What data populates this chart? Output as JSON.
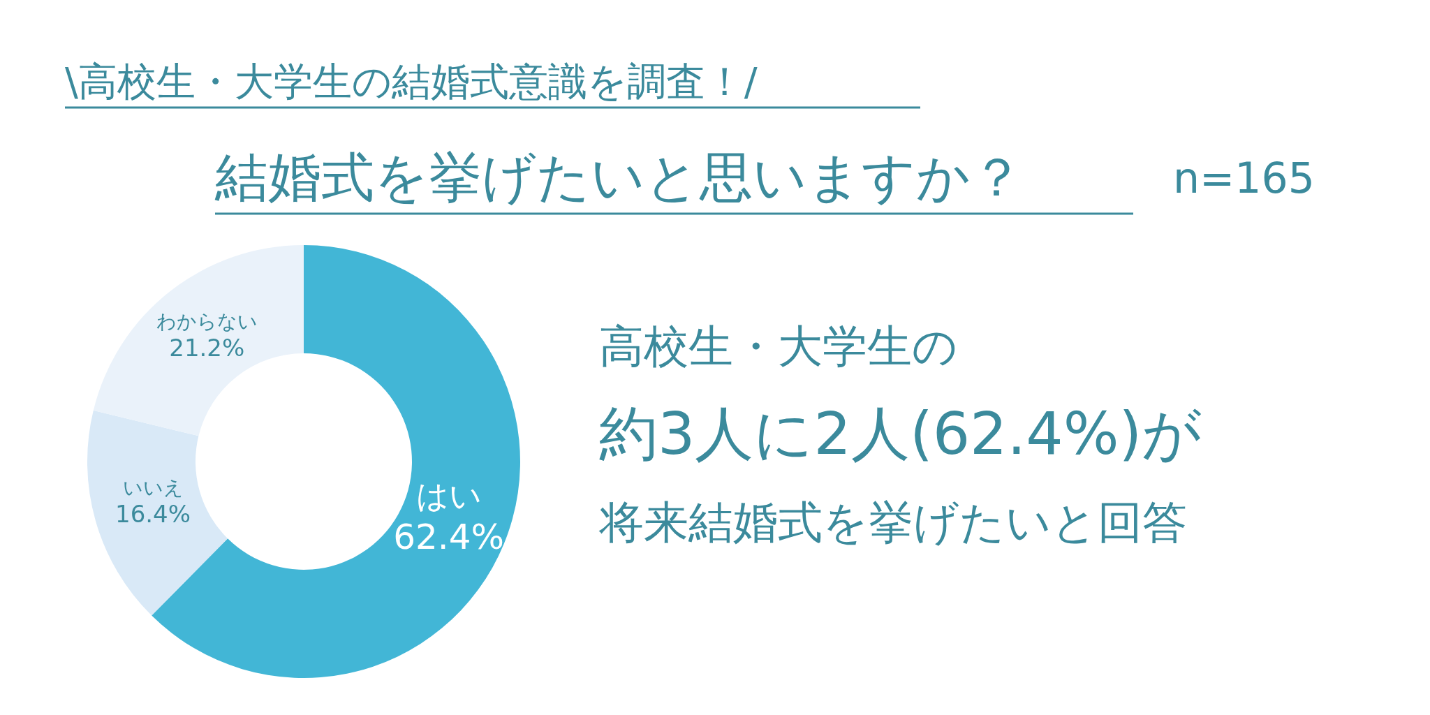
{
  "chart_data": {
    "type": "donut",
    "subtitle": "\\高校生・大学生の結婚式意識を調査！/",
    "title": "結婚式を挙げたいと思いますか？",
    "categories": [
      "はい",
      "いいえ",
      "わからない"
    ],
    "values": [
      62.4,
      16.4,
      21.2
    ],
    "value_labels": [
      "62.4%",
      "16.4%",
      "21.2%"
    ],
    "colors": [
      "#42b6d6",
      "#d9e9f7",
      "#eaf2fa"
    ],
    "annotations": [
      "n=165",
      "高校生・大学生の",
      "約3人に2人(62.4%)が",
      "将来結婚式を挙げたいと回答"
    ],
    "legend": false
  }
}
